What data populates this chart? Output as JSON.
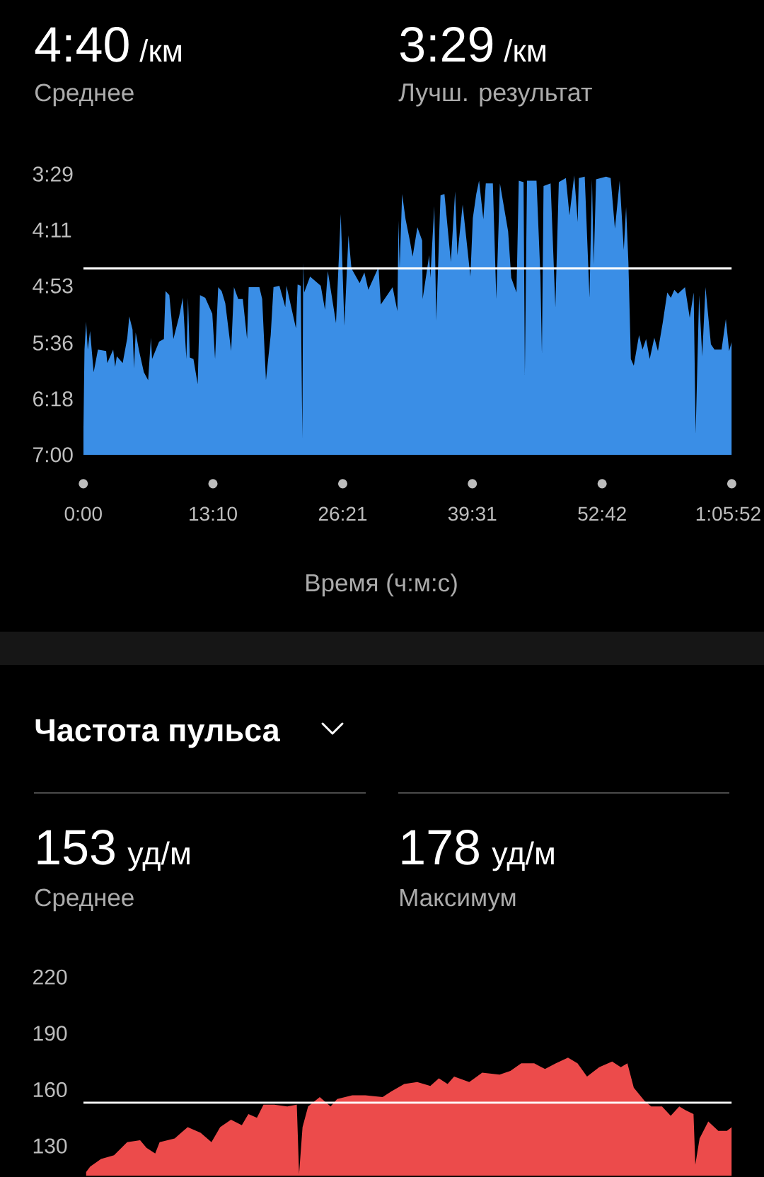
{
  "chart_data": [
    {
      "type": "area",
      "xlabel": "Время (ч:м:с)",
      "annotations": [
        "4:40",
        "/км",
        "Среднее",
        "3:29",
        "/км",
        "Лучш. результат"
      ],
      "x": [
        0,
        7,
        17,
        27,
        41,
        63,
        89,
        139,
        146,
        182,
        194,
        204,
        240,
        268,
        280,
        300,
        309,
        319,
        340,
        369,
        395,
        412,
        419,
        462,
        491,
        501,
        524,
        549,
        584,
        606,
        628,
        638,
        649,
        671,
        697,
        711,
        743,
        786,
        803,
        822,
        843,
        865,
        901,
        918,
        944,
        972,
        998,
        1008,
        1073,
        1090,
        1113,
        1142,
        1159,
        1195,
        1231,
        1238,
        1296,
        1306,
        1325,
        1335,
        1340,
        1346,
        1382,
        1447,
        1473,
        1490,
        1540,
        1569,
        1591,
        1616,
        1634,
        1684,
        1713,
        1737,
        1799,
        1813,
        1885,
        1914,
        1921,
        1928,
        1943,
        1964,
        1990,
        2007,
        2036,
        2065,
        2068,
        2108,
        2115,
        2139,
        2151,
        2177,
        2201,
        2240,
        2266,
        2280,
        2312,
        2359,
        2374,
        2395,
        2412,
        2438,
        2453,
        2496,
        2517,
        2539,
        2589,
        2608,
        2640,
        2654,
        2683,
        2691,
        2704,
        2762,
        2786,
        2795,
        2805,
        2848,
        2877,
        2898,
        2941,
        2963,
        2992,
        3013,
        3020,
        3056,
        3085,
        3100,
        3111,
        3125,
        3186,
        3214,
        3240,
        3269,
        3294,
        3308,
        3322,
        3337,
        3355,
        3387,
        3408,
        3430,
        3452,
        3480,
        3502,
        3531,
        3559,
        3581,
        3602,
        3624,
        3667,
        3696,
        3720,
        3732,
        3753,
        3772,
        3792,
        3825,
        3847,
        3890,
        3916,
        3936,
        3952
      ],
      "values": [
        408,
        341,
        320,
        341,
        327,
        358,
        341,
        342,
        351,
        341,
        354,
        346,
        351,
        332,
        316,
        326,
        355,
        328,
        342,
        358,
        364,
        332,
        348,
        335,
        333,
        297,
        300,
        333,
        316,
        302,
        348,
        302,
        347,
        348,
        367,
        300,
        302,
        314,
        348,
        294,
        297,
        306,
        342,
        294,
        303,
        303,
        333,
        294,
        294,
        303,
        364,
        330,
        294,
        293,
        309,
        293,
        325,
        292,
        293,
        408,
        276,
        298,
        286,
        293,
        311,
        282,
        321,
        239,
        323,
        255,
        280,
        291,
        283,
        296,
        279,
        307,
        294,
        312,
        244,
        279,
        224,
        243,
        259,
        271,
        249,
        259,
        303,
        270,
        287,
        233,
        319,
        225,
        224,
        275,
        222,
        270,
        232,
        286,
        242,
        224,
        214,
        243,
        216,
        216,
        303,
        216,
        252,
        287,
        298,
        214,
        215,
        360,
        214,
        214,
        286,
        344,
        218,
        216,
        309,
        215,
        212,
        240,
        210,
        245,
        212,
        211,
        302,
        213,
        277,
        213,
        211,
        212,
        250,
        214,
        266,
        234,
        275,
        348,
        353,
        330,
        341,
        333,
        348,
        332,
        342,
        321,
        298,
        302,
        296,
        299,
        294,
        317,
        298,
        404,
        300,
        346,
        294,
        337,
        341,
        341,
        318,
        342,
        335
      ],
      "color": "#3a8ee6",
      "xlim": [
        0,
        3952
      ],
      "xticks": [
        {
          "value": 0,
          "label": "0:00"
        },
        {
          "value": 790,
          "label": "13:10"
        },
        {
          "value": 1581,
          "label": "26:21"
        },
        {
          "value": 2371,
          "label": "39:31"
        },
        {
          "value": 3162,
          "label": "52:42"
        },
        {
          "value": 3952,
          "label": "1:05:52"
        }
      ],
      "ylim": [
        420,
        209
      ],
      "yticks": [
        {
          "value": 209,
          "label": "3:29"
        },
        {
          "value": 251,
          "label": "4:11"
        },
        {
          "value": 293,
          "label": "4:53"
        },
        {
          "value": 336,
          "label": "5:36"
        },
        {
          "value": 378,
          "label": "6:18"
        },
        {
          "value": 420,
          "label": "7:00"
        }
      ],
      "ref_lines": [
        {
          "axis": "y",
          "value": 280,
          "color": "#ffffff"
        }
      ]
    },
    {
      "type": "area",
      "title": "Частота пульса",
      "annotations": [
        "153",
        "уд/м",
        "Среднее",
        "178",
        "уд/м",
        "Максимум"
      ],
      "x": [
        16,
        42,
        108,
        187,
        267,
        346,
        385,
        438,
        465,
        557,
        636,
        715,
        781,
        834,
        900,
        966,
        1006,
        1058,
        1098,
        1164,
        1243,
        1301,
        1315,
        1336,
        1370,
        1441,
        1507,
        1547,
        1639,
        1719,
        1824,
        1877,
        1956,
        2035,
        2115,
        2167,
        2220,
        2260,
        2352,
        2431,
        2537,
        2603,
        2669,
        2748,
        2814,
        2880,
        2954,
        3012,
        3070,
        3144,
        3223,
        3276,
        3316,
        3355,
        3421,
        3461,
        3527,
        3580,
        3632,
        3672,
        3719,
        3730,
        3756,
        3809,
        3870,
        3923,
        3952
      ],
      "values": [
        116,
        119,
        123,
        125,
        132,
        133,
        129,
        126,
        132,
        134,
        140,
        137,
        132,
        140,
        144,
        141,
        147,
        145,
        152,
        152,
        151,
        152,
        115,
        140,
        151,
        156,
        151,
        155,
        157,
        157,
        156,
        159,
        163,
        164,
        162,
        166,
        163,
        167,
        164,
        169,
        168,
        170,
        174,
        174,
        171,
        174,
        177,
        174,
        167,
        172,
        175,
        172,
        174,
        161,
        154,
        151,
        151,
        146,
        151,
        149,
        147,
        120,
        134,
        143,
        138,
        138,
        140
      ],
      "color": "#ec4b4b",
      "xlim": [
        0,
        3952
      ],
      "ylim": [
        114,
        220
      ],
      "yticks": [
        130,
        160,
        190,
        220
      ],
      "tick_labels": "y",
      "ref_lines": [
        {
          "axis": "y",
          "value": 153,
          "color": "#ffffff"
        }
      ]
    }
  ]
}
